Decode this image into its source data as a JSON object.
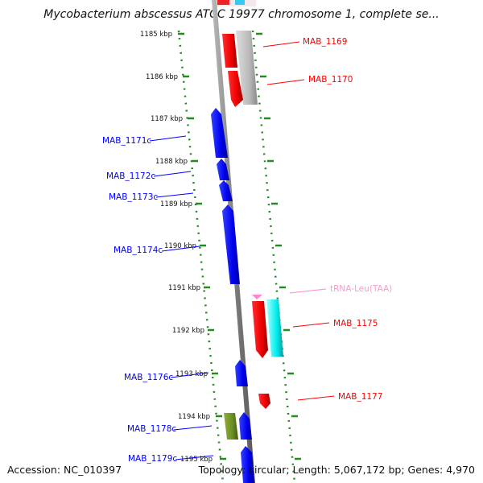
{
  "title": "Mycobacterium abscessus ATCC 19977 chromosome 1, complete se...",
  "footer": {
    "accession": "Accession: NC_010397",
    "stats": "Topology: circular; Length: 5,067,172 bp; Genes: 4,970"
  },
  "colors": {
    "forward_gene": "#ff0000",
    "reverse_gene": "#0000ff",
    "trna": "#ff88cc",
    "tick_marks": "#228b22",
    "backbone": "#808080",
    "pseudo_gene": "#aaaaaa",
    "cyan_gene": "#00ffff",
    "olive_gene": "#6b8e23"
  },
  "ruler_kbp": [
    "1185 kbp",
    "1186 kbp",
    "1187 kbp",
    "1188 kbp",
    "1189 kbp",
    "1190 kbp",
    "1191 kbp",
    "1192 kbp",
    "1193 kbp",
    "1194 kbp",
    "1195 kbp"
  ],
  "genes": [
    {
      "name": "MAB_1169",
      "strand": "forward",
      "color": "red"
    },
    {
      "name": "MAB_1170",
      "strand": "forward",
      "color": "red"
    },
    {
      "name": "MAB_1171c",
      "strand": "reverse",
      "color": "blue"
    },
    {
      "name": "MAB_1172c",
      "strand": "reverse",
      "color": "blue"
    },
    {
      "name": "MAB_1173c",
      "strand": "reverse",
      "color": "blue"
    },
    {
      "name": "MAB_1174c",
      "strand": "reverse",
      "color": "blue"
    },
    {
      "name": "tRNA-Leu(TAA)",
      "strand": "forward",
      "color": "pink"
    },
    {
      "name": "MAB_1175",
      "strand": "forward",
      "color": "red"
    },
    {
      "name": "MAB_1177",
      "strand": "forward",
      "color": "red"
    },
    {
      "name": "MAB_1176c",
      "strand": "reverse",
      "color": "blue"
    },
    {
      "name": "MAB_1178c",
      "strand": "reverse",
      "color": "blue"
    },
    {
      "name": "MAB_1179c",
      "strand": "reverse",
      "color": "blue"
    }
  ]
}
